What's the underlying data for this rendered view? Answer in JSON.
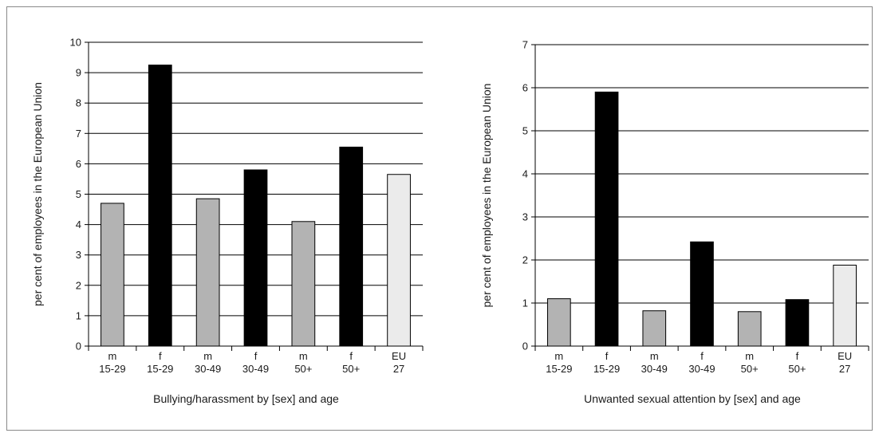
{
  "chart_data": [
    {
      "type": "bar",
      "title": "",
      "xlabel": "Bullying/harassment by [sex] and age",
      "ylabel": "per cent of employees in the European Union",
      "ylim": [
        0,
        10
      ],
      "yticks": [
        0,
        1,
        2,
        3,
        4,
        5,
        6,
        7,
        8,
        9,
        10
      ],
      "grid": true,
      "legend": "none",
      "categories": [
        {
          "line1": "m",
          "line2": "15-29"
        },
        {
          "line1": "f",
          "line2": "15-29"
        },
        {
          "line1": "m",
          "line2": "30-49"
        },
        {
          "line1": "f",
          "line2": "30-49"
        },
        {
          "line1": "m",
          "line2": "50+"
        },
        {
          "line1": "f",
          "line2": "50+"
        },
        {
          "line1": "EU",
          "line2": "27"
        }
      ],
      "values": [
        4.7,
        9.25,
        4.85,
        5.8,
        4.1,
        6.55,
        5.65
      ],
      "bar_colors": [
        "#b3b3b3",
        "#000000",
        "#b3b3b3",
        "#000000",
        "#b3b3b3",
        "#000000",
        "#ebebeb"
      ]
    },
    {
      "type": "bar",
      "title": "",
      "xlabel": "Unwanted sexual attention by [sex] and age",
      "ylabel": "per cent of employees in the European Union",
      "ylim": [
        0,
        7
      ],
      "yticks": [
        0,
        1,
        2,
        3,
        4,
        5,
        6,
        7
      ],
      "grid": true,
      "legend": "none",
      "categories": [
        {
          "line1": "m",
          "line2": "15-29"
        },
        {
          "line1": "f",
          "line2": "15-29"
        },
        {
          "line1": "m",
          "line2": "30-49"
        },
        {
          "line1": "f",
          "line2": "30-49"
        },
        {
          "line1": "m",
          "line2": "50+"
        },
        {
          "line1": "f",
          "line2": "50+"
        },
        {
          "line1": "EU",
          "line2": "27"
        }
      ],
      "values": [
        1.1,
        5.9,
        0.82,
        2.42,
        0.8,
        1.08,
        1.88
      ],
      "bar_colors": [
        "#b3b3b3",
        "#000000",
        "#b3b3b3",
        "#000000",
        "#b3b3b3",
        "#000000",
        "#ebebeb"
      ]
    }
  ]
}
